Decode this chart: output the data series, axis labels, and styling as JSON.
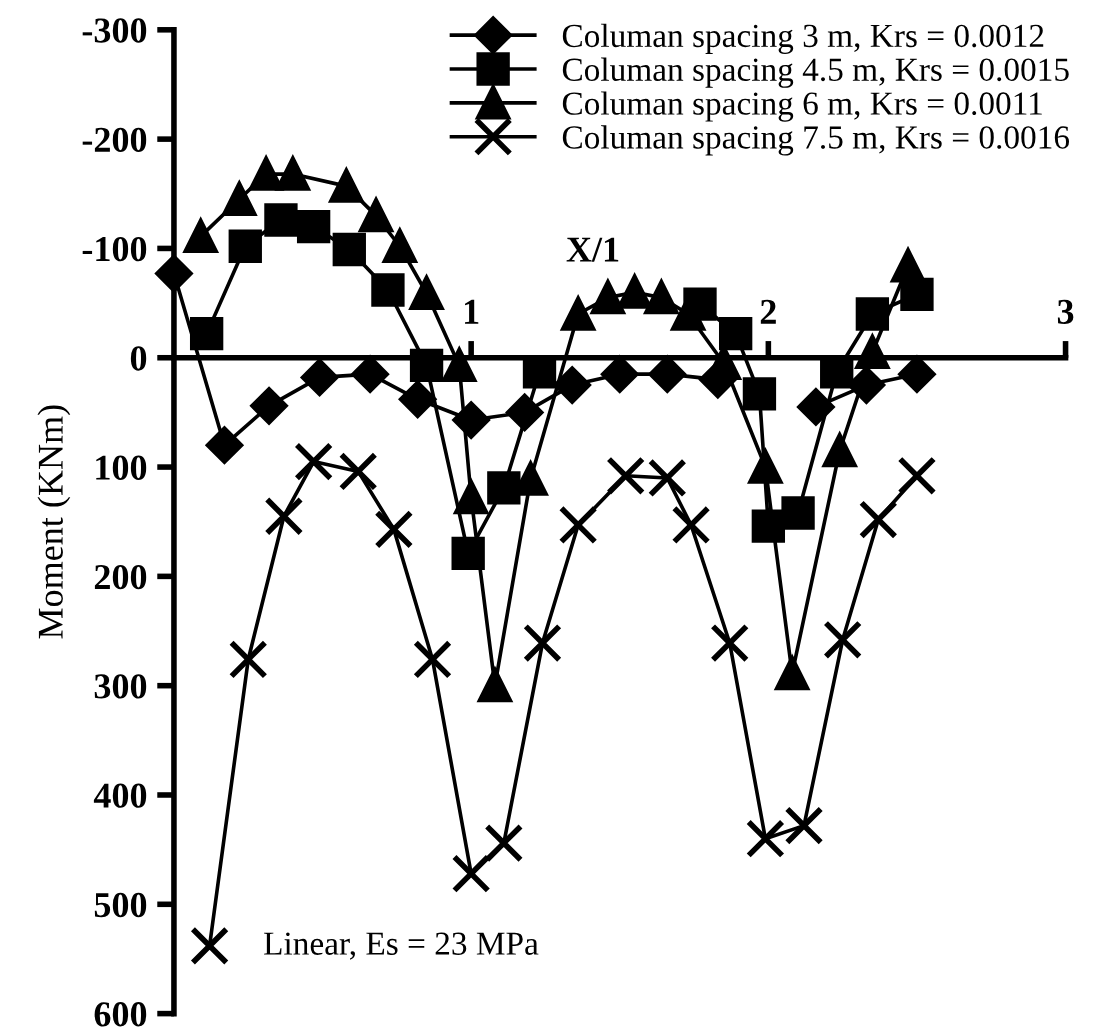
{
  "chart_data": {
    "type": "line",
    "xlabel": "X/1",
    "ylabel": "Moment (KNm)",
    "xlim": [
      0,
      3
    ],
    "xticks": [
      1,
      2,
      3
    ],
    "ylim": [
      600,
      -300
    ],
    "yticks": [
      -300,
      -200,
      -100,
      0,
      100,
      200,
      300,
      400,
      500,
      600
    ],
    "grid": false,
    "legend": "top right",
    "line_style": "solid",
    "annotations": [
      "Linear, Es = 23 MPa"
    ],
    "series": [
      {
        "name": "Columan spacing 3 m, Krs = 0.0012",
        "color": "#000000",
        "marker": "diamond",
        "x": [
          0,
          0.17,
          0.32,
          0.49,
          0.66,
          0.82,
          1.0,
          1.18,
          1.34,
          1.5,
          1.66,
          1.83,
          1.99,
          2.16,
          2.33,
          2.5
        ],
        "values": [
          -77,
          80,
          44,
          18,
          15,
          38,
          57,
          50,
          25,
          15,
          15,
          20,
          null,
          45,
          25,
          15
        ]
      },
      {
        "name": "Columan spacing 4.5 m, Krs = 0.0015",
        "color": "#000000",
        "marker": "square",
        "x": [
          0.11,
          0.24,
          0.36,
          0.47,
          0.59,
          0.72,
          0.85,
          0.99,
          1.11,
          1.23,
          1.36,
          1.5,
          1.63,
          1.77,
          1.89,
          1.97,
          2.0,
          2.1,
          2.23,
          2.35,
          2.5
        ],
        "values": [
          -22,
          -102,
          -126,
          -120,
          -99,
          -62,
          7,
          179,
          119,
          13,
          null,
          null,
          null,
          -49,
          -22,
          33,
          154,
          142,
          13,
          -40,
          -58
        ]
      },
      {
        "name": "Columan spacing 6 m, Krs = 0.0011",
        "color": "#000000",
        "marker": "triangle",
        "x": [
          0.09,
          0.22,
          0.31,
          0.4,
          0.58,
          0.68,
          0.76,
          0.85,
          0.96,
          1.0,
          1.08,
          1.2,
          1.36,
          1.46,
          1.55,
          1.64,
          1.73,
          1.85,
          1.99,
          2.08,
          2.24,
          2.35,
          2.47
        ],
        "values": [
          -111,
          -145,
          -168,
          -168,
          -157,
          -130,
          -102,
          -59,
          7,
          128,
          300,
          111,
          -40,
          -55,
          -60,
          -55,
          -40,
          5,
          100,
          289,
          85,
          -5,
          -84
        ]
      },
      {
        "name": "Columan spacing 7.5 m, Krs = 0.0016",
        "color": "#000000",
        "marker": "cross",
        "x": [
          0.12,
          0.25,
          0.37,
          0.47,
          0.62,
          0.74,
          0.87,
          1.0,
          1.11,
          1.24,
          1.36,
          1.52,
          1.66,
          1.74,
          1.87,
          1.99,
          2.12,
          2.25,
          2.37,
          2.5
        ],
        "values": [
          538,
          276,
          145,
          95,
          104,
          157,
          276,
          472,
          444,
          261,
          153,
          108,
          110,
          153,
          261,
          440,
          428,
          258,
          148,
          108
        ]
      }
    ]
  }
}
